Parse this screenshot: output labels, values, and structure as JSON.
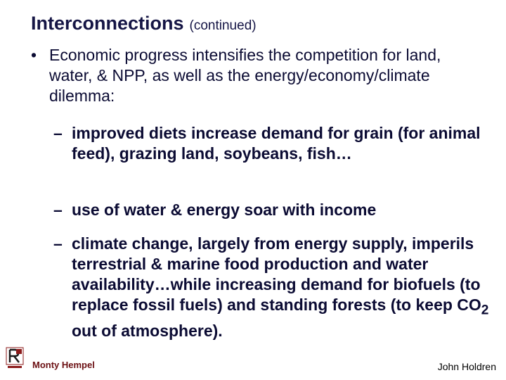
{
  "slide": {
    "title": "Interconnections",
    "title_suffix": "(continued)",
    "bullet_marker": "•",
    "bullet_text": "Economic progress intensifies the competition for land, water, & NPP, as well as the energy/economy/climate dilemma:",
    "sub_marker": "–",
    "sub_items": [
      {
        "text": "improved diets increase demand for grain (for animal feed), grazing land, soybeans, fish…"
      },
      {
        "text": "use of water & energy soar with income"
      },
      {
        "text_before": "climate change, largely from energy supply, imperils terrestrial & marine food production and water availability…while increasing demand for biofuels (to replace fossil fuels) and standing forests (to keep CO",
        "subscript": "2",
        "text_after": " out of atmosphere)."
      }
    ]
  },
  "footer": {
    "presenter": "Monty Hempel",
    "author": "John Holdren",
    "logo_color": "#8b1a1a"
  }
}
